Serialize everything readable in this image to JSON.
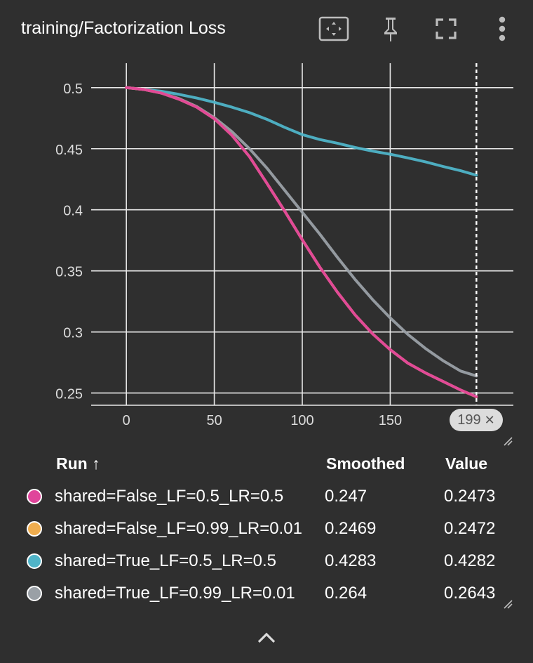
{
  "title": "training/Factorization Loss",
  "toolbar": {
    "icons": [
      "fit-domain-icon",
      "pin-icon",
      "fullscreen-icon",
      "more-vert-icon"
    ]
  },
  "chart_data": {
    "type": "line",
    "title": "training/Factorization Loss",
    "xlabel": "",
    "ylabel": "",
    "xlim": [
      -20,
      220
    ],
    "ylim": [
      0.24,
      0.52
    ],
    "x_ticks": [
      "0",
      "50",
      "100",
      "150"
    ],
    "y_ticks": [
      "0.5",
      "0.45",
      "0.4",
      "0.35",
      "0.3",
      "0.25"
    ],
    "grid": true,
    "cursor_step": 199,
    "series": [
      {
        "name": "shared=True_LF=0.5_LR=0.5",
        "color": "#4fb4c8",
        "x": [
          0,
          10,
          20,
          30,
          40,
          50,
          60,
          70,
          80,
          90,
          100,
          110,
          120,
          130,
          140,
          150,
          160,
          170,
          180,
          190,
          199
        ],
        "y": [
          0.5,
          0.4985,
          0.497,
          0.4945,
          0.4915,
          0.488,
          0.484,
          0.4795,
          0.474,
          0.4675,
          0.4615,
          0.4575,
          0.4545,
          0.451,
          0.448,
          0.4455,
          0.4425,
          0.4393,
          0.4355,
          0.432,
          0.4283
        ]
      },
      {
        "name": "shared=True_LF=0.99_LR=0.01",
        "color": "#9aa0a6",
        "x": [
          0,
          10,
          20,
          30,
          40,
          50,
          60,
          70,
          80,
          90,
          100,
          110,
          120,
          130,
          140,
          150,
          160,
          170,
          180,
          190,
          199
        ],
        "y": [
          0.5,
          0.4985,
          0.4955,
          0.491,
          0.4845,
          0.4755,
          0.464,
          0.45,
          0.434,
          0.416,
          0.398,
          0.38,
          0.361,
          0.343,
          0.3265,
          0.3115,
          0.298,
          0.2865,
          0.2765,
          0.268,
          0.264
        ]
      },
      {
        "name": "shared=False_LF=0.99_LR=0.01",
        "color": "#f0ad4e",
        "x": [
          0,
          10,
          20,
          30,
          40,
          50,
          60,
          70,
          80,
          90,
          100,
          110,
          120,
          130,
          140,
          150,
          160,
          170,
          180,
          190,
          199
        ],
        "y": [
          0.5,
          0.4985,
          0.4955,
          0.4905,
          0.484,
          0.4745,
          0.461,
          0.4435,
          0.4215,
          0.399,
          0.3755,
          0.353,
          0.3325,
          0.314,
          0.2985,
          0.2855,
          0.2745,
          0.2665,
          0.2595,
          0.2525,
          0.2469
        ]
      },
      {
        "name": "shared=False_LF=0.5_LR=0.5",
        "color": "#e0459b",
        "x": [
          0,
          10,
          20,
          30,
          40,
          50,
          60,
          70,
          80,
          90,
          100,
          110,
          120,
          130,
          140,
          150,
          160,
          170,
          180,
          190,
          199
        ],
        "y": [
          0.5,
          0.4985,
          0.4955,
          0.4905,
          0.484,
          0.4745,
          0.461,
          0.4435,
          0.4215,
          0.399,
          0.3755,
          0.353,
          0.3325,
          0.314,
          0.2985,
          0.2855,
          0.2745,
          0.2665,
          0.2595,
          0.2525,
          0.247
        ]
      }
    ]
  },
  "tooltip_pill": {
    "step": "199",
    "close": "✕"
  },
  "table": {
    "headers": {
      "run": "Run ↑",
      "smoothed": "Smoothed",
      "value": "Value"
    },
    "rows": [
      {
        "name": "shared=False_LF=0.5_LR=0.5",
        "smoothed": "0.247",
        "value": "0.2473",
        "color": "#e0459b"
      },
      {
        "name": "shared=False_LF=0.99_LR=0.01",
        "smoothed": "0.2469",
        "value": "0.2472",
        "color": "#f0ad4e"
      },
      {
        "name": "shared=True_LF=0.5_LR=0.5",
        "smoothed": "0.4283",
        "value": "0.4282",
        "color": "#4fb4c8"
      },
      {
        "name": "shared=True_LF=0.99_LR=0.01",
        "smoothed": "0.264",
        "value": "0.2643",
        "color": "#9aa0a6"
      }
    ]
  }
}
